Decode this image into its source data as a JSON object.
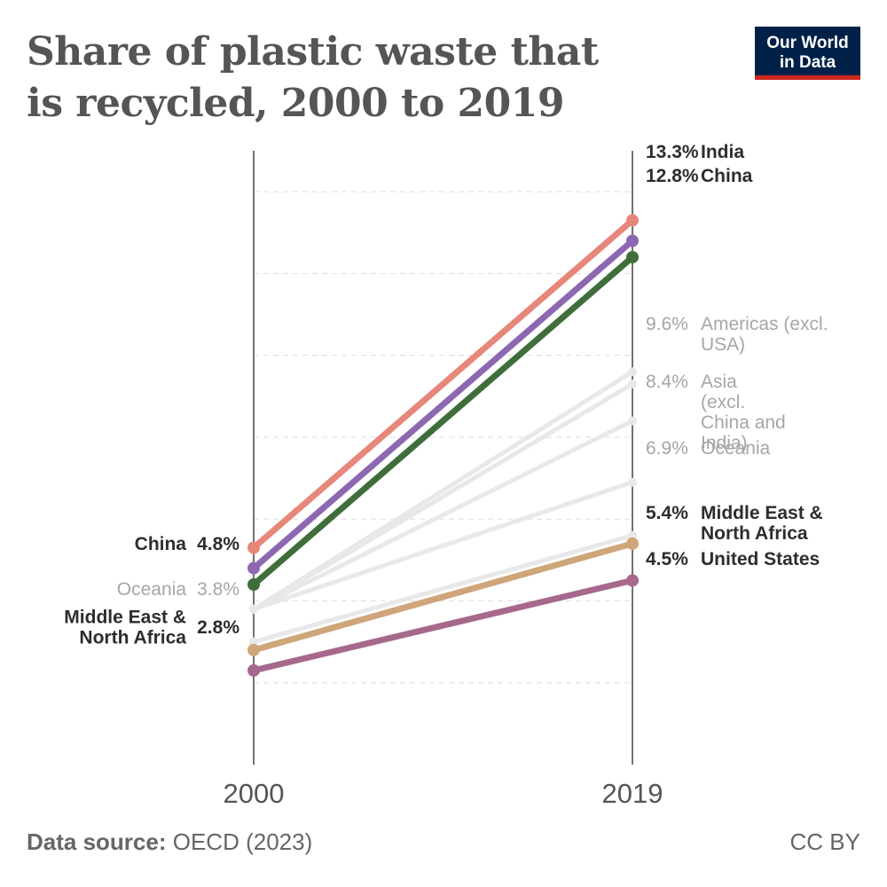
{
  "title": "Share of plastic waste that is recycled, 2000 to 2019",
  "logo": {
    "line1": "Our World",
    "line2": "in Data"
  },
  "footer": {
    "source_label": "Data source:",
    "source": "OECD (2023)",
    "license": "CC BY"
  },
  "chart_data": {
    "type": "line",
    "subtype": "slope",
    "x": [
      "2000",
      "2019"
    ],
    "ylim": [
      0,
      15
    ],
    "grid": true,
    "series": [
      {
        "name": "India",
        "values": [
          5.3,
          13.3
        ],
        "color": "#e6877a",
        "highlight": true,
        "start_label": "",
        "end_label": "13.3%"
      },
      {
        "name": "China",
        "values": [
          4.8,
          12.8
        ],
        "color": "#8c68b2",
        "highlight": true,
        "start_label": "4.8%",
        "end_label": "12.8%"
      },
      {
        "name": "",
        "values": [
          4.4,
          12.4
        ],
        "color": "#3f6e3a",
        "highlight": true,
        "start_label": "",
        "end_label": ""
      },
      {
        "name": "Americas (excl. USA)",
        "values": [
          3.8,
          9.6
        ],
        "color": "#e8e8e8",
        "highlight": false,
        "start_label": "",
        "end_label": "9.6%"
      },
      {
        "name": "",
        "values": [
          3.8,
          9.3
        ],
        "color": "#e8e8e8",
        "highlight": false,
        "start_label": "",
        "end_label": ""
      },
      {
        "name": "Asia (excl. China and India)",
        "values": [
          3.8,
          8.4
        ],
        "color": "#e8e8e8",
        "highlight": false,
        "start_label": "",
        "end_label": "8.4%"
      },
      {
        "name": "Oceania",
        "values": [
          3.8,
          6.9
        ],
        "color": "#e8e8e8",
        "highlight": false,
        "start_label": "3.8%",
        "end_label": "6.9%"
      },
      {
        "name": "",
        "values": [
          3.0,
          5.6
        ],
        "color": "#e8e8e8",
        "highlight": false,
        "start_label": "",
        "end_label": ""
      },
      {
        "name": "Middle East & North Africa",
        "values": [
          2.8,
          5.4
        ],
        "color": "#cfa57a",
        "highlight": true,
        "start_label": "2.8%",
        "end_label": "5.4%"
      },
      {
        "name": "United States",
        "values": [
          2.3,
          4.5
        ],
        "color": "#a7688d",
        "highlight": true,
        "start_label": "",
        "end_label": "4.5%"
      }
    ]
  }
}
